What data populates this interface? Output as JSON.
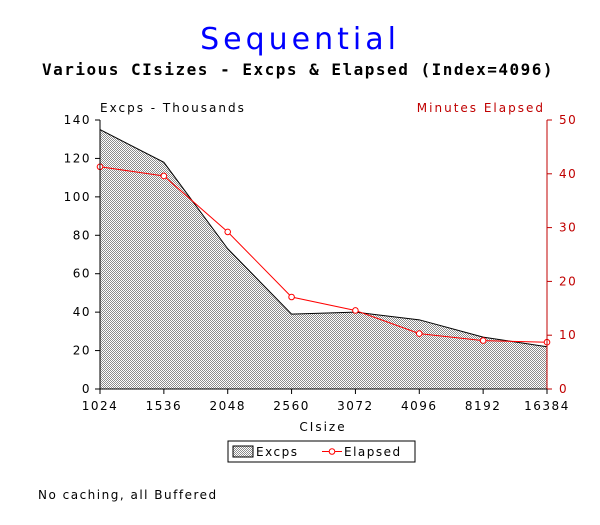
{
  "chart_data": {
    "type": "area+line",
    "title": "Sequential",
    "subtitle": "Various CIsizes - Excps & Elapsed (Index=4096)",
    "xlabel": "CIsize",
    "ylabel_left": "Excps - Thousands",
    "ylabel_right": "Minutes Elapsed",
    "categories": [
      "1024",
      "1536",
      "2048",
      "2560",
      "3072",
      "4096",
      "8192",
      "16384"
    ],
    "ylim_left": [
      0,
      140
    ],
    "yticks_left": [
      0,
      20,
      40,
      60,
      80,
      100,
      120,
      140
    ],
    "ylim_right": [
      0,
      50
    ],
    "yticks_right": [
      0,
      10,
      20,
      30,
      40,
      50
    ],
    "series": [
      {
        "name": "Excps",
        "axis": "left",
        "type": "area",
        "color": "#b0b0b0",
        "values": [
          135,
          118,
          73,
          39,
          40,
          36,
          27,
          22
        ]
      },
      {
        "name": "Elapsed",
        "axis": "right",
        "type": "line",
        "color": "#ff0000",
        "values": [
          41.3,
          39.6,
          29.2,
          17.1,
          14.6,
          10.3,
          9.0,
          8.7
        ]
      }
    ],
    "legend": {
      "position": "bottom-center",
      "entries": [
        "Excps",
        "Elapsed"
      ]
    },
    "note": "No caching, all Buffered"
  }
}
